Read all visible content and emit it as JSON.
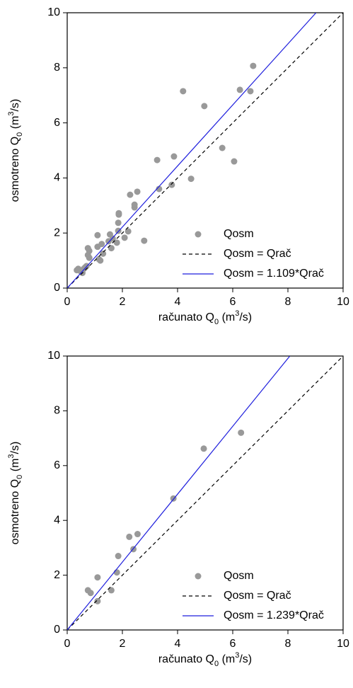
{
  "chart_data": [
    {
      "type": "scatter",
      "x_label": [
        "računato Q",
        "0",
        " (m",
        "3",
        "/s)"
      ],
      "y_label": [
        "osmotreno Q",
        "0",
        " (m",
        "3",
        "/s)"
      ],
      "xlim": [
        0,
        10
      ],
      "ylim": [
        0,
        10
      ],
      "xticks": [
        0,
        2,
        4,
        6,
        8,
        10
      ],
      "yticks": [
        0,
        2,
        4,
        6,
        8,
        10
      ],
      "legend": "lower right",
      "series": [
        {
          "name": "Qosm",
          "type": "scatter",
          "color": "#999999",
          "x": [
            0.35,
            0.4,
            0.5,
            0.55,
            0.6,
            0.65,
            0.7,
            0.75,
            0.75,
            0.8,
            0.8,
            1.1,
            1.1,
            1.15,
            1.2,
            1.25,
            1.3,
            1.5,
            1.6,
            1.55,
            1.65,
            1.8,
            1.85,
            1.85,
            1.87,
            1.87,
            2.08,
            2.21,
            2.28,
            2.44,
            2.44,
            2.54,
            2.79,
            3.26,
            3.33,
            3.79,
            3.87,
            4.2,
            4.49,
            4.97,
            5.62,
            6.05,
            6.26,
            6.64,
            6.74
          ],
          "values": [
            0.65,
            0.7,
            0.6,
            0.55,
            0.7,
            0.75,
            0.8,
            1.45,
            1.2,
            1.35,
            1.1,
            1.5,
            1.92,
            1.05,
            1.0,
            1.6,
            1.25,
            1.7,
            1.45,
            1.95,
            1.8,
            1.65,
            2.08,
            2.37,
            2.67,
            2.72,
            1.83,
            2.06,
            3.39,
            2.93,
            3.03,
            3.5,
            1.72,
            4.65,
            3.6,
            3.75,
            4.78,
            7.15,
            3.97,
            6.61,
            5.09,
            4.6,
            7.2,
            7.15,
            8.07
          ]
        },
        {
          "name": "Qosm = Qrač",
          "type": "line",
          "linestyle": "dashed",
          "color": "#000000",
          "x": [
            0,
            10
          ],
          "values": [
            0,
            10
          ]
        },
        {
          "name": "Qosm = 1.109*Qrač",
          "type": "line",
          "linestyle": "solid",
          "color": "#1f1fdd",
          "x": [
            0,
            9.02
          ],
          "values": [
            0,
            10
          ]
        }
      ]
    },
    {
      "type": "scatter",
      "x_label": [
        "računato Q",
        "0",
        " (m",
        "3",
        "/s)"
      ],
      "y_label": [
        "osmotreno Q",
        "0",
        " (m",
        "3",
        "/s)"
      ],
      "xlim": [
        0,
        10
      ],
      "ylim": [
        0,
        10
      ],
      "xticks": [
        0,
        2,
        4,
        6,
        8,
        10
      ],
      "yticks": [
        0,
        2,
        4,
        6,
        8,
        10
      ],
      "legend": "lower right",
      "series": [
        {
          "name": "Qosm",
          "type": "scatter",
          "color": "#999999",
          "x": [
            0.75,
            0.85,
            1.1,
            1.1,
            1.6,
            1.8,
            1.85,
            2.25,
            2.4,
            2.55,
            3.85,
            4.95,
            6.3
          ],
          "values": [
            1.45,
            1.35,
            1.92,
            1.05,
            1.45,
            2.1,
            2.7,
            3.4,
            2.95,
            3.5,
            4.8,
            6.62,
            7.2
          ]
        },
        {
          "name": "Qosm = Qrač",
          "type": "line",
          "linestyle": "dashed",
          "color": "#000000",
          "x": [
            0,
            10
          ],
          "values": [
            0,
            10
          ]
        },
        {
          "name": "Qosm = 1.239*Qrač",
          "type": "line",
          "linestyle": "solid",
          "color": "#1f1fdd",
          "x": [
            0,
            8.07
          ],
          "values": [
            0,
            10
          ]
        }
      ]
    }
  ]
}
